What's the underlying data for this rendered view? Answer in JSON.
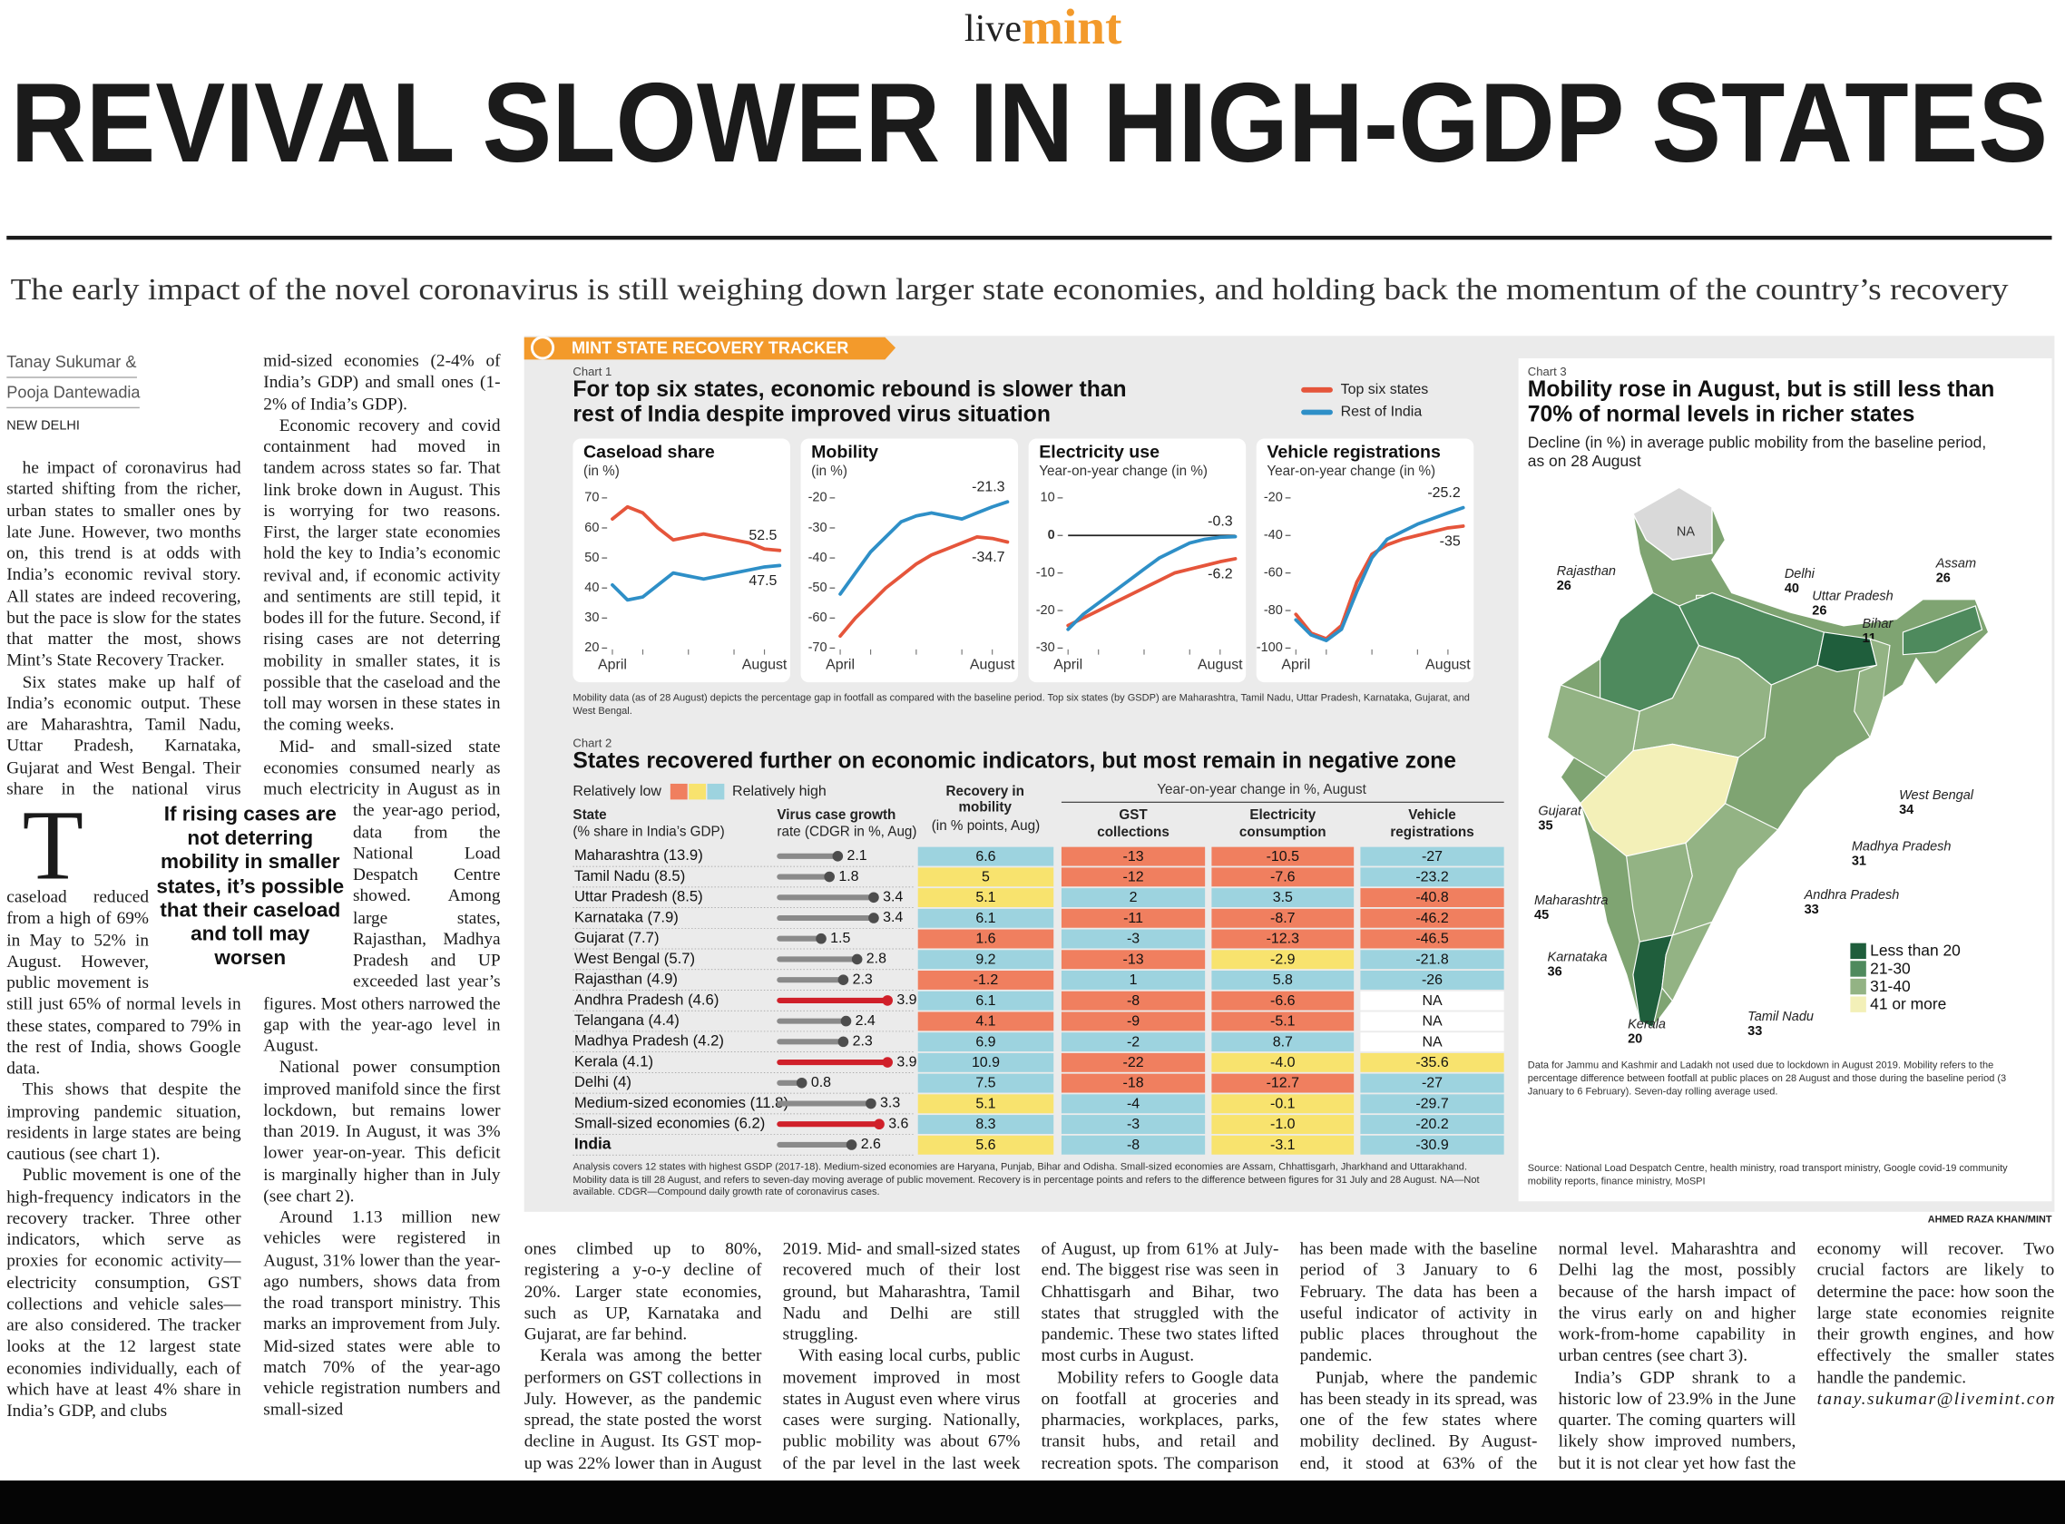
{
  "brand": {
    "live": "live",
    "mint": "mint"
  },
  "headline": "REVIVAL SLOWER IN HIGH-GDP STATES",
  "standfirst": "The early impact of the novel coronavirus is still weighing down larger state economies, and holding back the momentum of the country’s recovery",
  "byline": [
    "Tanay Sukumar &",
    "Pooja Dantewadia"
  ],
  "dateline": "NEW DELHI",
  "pullquote": "If rising cases are not deterring mobility in smaller states, it’s possible that their caseload and toll may worsen",
  "article": {
    "col1": [
      "The impact of coronavirus had started shifting from the richer, urban states to smaller ones by late June. However, two months on, this trend is at odds with India’s economic revival story. All states are indeed recovering, but the pace is slow for the states that matter the most, shows Mint’s State Recovery Tracker.",
      "Six states make up half of India’s economic output. These are Maharashtra, Tamil Nadu, Uttar Pradesh, Karnataka, Gujarat and West Bengal. Their share in the national virus caseload reduced from a high of 69% in May to 52% in August. However, public movement is still just 65% of normal levels in these states, compared to 79% in the rest of India, shows Google data.",
      "This shows that despite the improving pandemic situation, residents in large states are being cautious (see chart 1).",
      "Public movement is one of the high-frequency indicators in the recovery tracker. Three other indicators, which serve as proxies for economic activity—electricity consumption, GST collections and vehicle sales—are also considered. The tracker looks at the 12 largest state economies individually, each of which have at least 4% share in India’s GDP, and clubs"
    ],
    "col2": [
      "mid-sized economies (2-4% of India’s GDP) and small ones (1-2% of India’s GDP).",
      "Economic recovery and covid containment had moved in tandem across states so far. That link broke down in August. This is worrying for two reasons. First, the larger state economies hold the key to India’s economic revival and, if economic activity and sentiments are still tepid, it bodes ill for the future. Second, if rising cases are not deterring mobility in smaller states, it is possible that the caseload and the toll may worsen in these states in the coming weeks.",
      "Mid- and small-sized state economies consumed nearly as much electricity in August as in the year-ago period, data from the National Load Despatch Centre showed. Among large states, Rajasthan, Madhya Pradesh and UP exceeded last year’s figures. Most others narrowed the gap with the year-ago level in August.",
      "National power consumption improved manifold since the first lockdown, but remains lower than 2019. In August, it was 3% lower year-on-year. This deficit is marginally higher than in July (see chart 2).",
      "Around 1.13 million new vehicles were registered in August, 31% lower than the year-ago numbers, shows data from the road transport ministry. This marks an improvement from July. Mid-sized states were able to match 70% of the year-ago vehicle registration numbers and small-sized"
    ],
    "bottom": [
      "ones climbed up to 80%, registering a y-o-y decline of 20%. Larger state economies, such as UP, Karnataka and Gujarat, are far behind.",
      "Kerala was among the better performers on GST collections in July. However, as the pandemic spread, the state posted the worst decline in August. Its GST mop-up was 22% lower than in August 2019. Mid- and small-sized states recovered much of their lost ground, but Maharashtra, Tamil Nadu and Delhi are still struggling.",
      "With easing local curbs, public movement improved in most states in August even where virus cases were surging. Nationally, public mobility was about 67% of the par level in the last week of August, up from 61% at July-end. The biggest rise was seen in Chhattisgarh and Bihar, two states that struggled with the pandemic. These two states lifted most curbs in August.",
      "Mobility refers to Google data on footfall at groceries and pharmacies, workplaces, parks, transit hubs, and retail and recreation spots. The comparison has been made with the baseline period of 3 January to 6 February. The data has been a useful indicator of activity in public places throughout the pandemic.",
      "Punjab, where the pandemic has been steady in its spread, was one of the few states where mobility declined. By August-end, it stood at 63% of the normal level. Maharashtra and Delhi lag the most, possibly because of the harsh impact of the virus early on and higher work-from-home capability in urban centres (see chart 3).",
      "India’s GDP shrank to a historic low of 23.9% in the June quarter. The coming quarters will likely show improved numbers, but it is not clear yet how fast the economy will recover. Two crucial factors are likely to determine the pace: how soon the large state economies reignite their growth engines, and how effectively the smaller states handle the pandemic."
    ],
    "email": "tanay.sukumar@livemint.com"
  },
  "tracker_label": "MINT STATE RECOVERY TRACKER",
  "credit": "AHMED RAZA KHAN/MINT",
  "chart1": {
    "type": "line",
    "label": "Chart 1",
    "title": "For top six states, economic rebound is slower than rest of India despite improved virus situation",
    "series_names": [
      "Top six states",
      "Rest of India"
    ],
    "series_colors": [
      "#e5553b",
      "#2e8fc7"
    ],
    "categories": [
      "April",
      null,
      null,
      null,
      null,
      null,
      null,
      null,
      null,
      null,
      "August",
      null
    ],
    "panels": [
      {
        "title": "Caseload share",
        "subtitle": "(in %)",
        "ylim": [
          20,
          70
        ],
        "yticks": [
          20,
          30,
          40,
          50,
          60,
          70
        ],
        "series": [
          [
            63,
            67,
            65,
            60,
            56,
            57,
            58,
            57,
            56,
            55,
            53,
            52.5
          ],
          [
            41,
            36,
            37,
            41,
            45,
            44,
            43,
            44,
            45,
            46,
            47,
            47.5
          ]
        ]
      },
      {
        "title": "Mobility",
        "subtitle": "(in %)",
        "ylim": [
          -70,
          -20
        ],
        "yticks": [
          -70,
          -60,
          -50,
          -40,
          -30,
          -20
        ],
        "series": [
          [
            -66,
            -60,
            -55,
            -50,
            -46,
            -42,
            -39,
            -37,
            -35,
            -33,
            -33.5,
            -34.7
          ],
          [
            -52,
            -45,
            -38,
            -33,
            -28,
            -26,
            -25,
            -26,
            -27,
            -25,
            -23,
            -21.3
          ]
        ]
      },
      {
        "title": "Electricity use",
        "subtitle": "Year-on-year change (in %)",
        "ylim": [
          -30,
          10
        ],
        "yticks": [
          -30,
          -20,
          -10,
          0,
          10
        ],
        "series": [
          [
            -24,
            -22,
            -20,
            -18,
            -16,
            -14,
            -12,
            -10,
            -9,
            -8,
            -7,
            -6.2
          ],
          [
            -25,
            -21,
            -18,
            -15,
            -12,
            -9,
            -6,
            -4,
            -2,
            -1,
            -0.5,
            -0.3
          ]
        ]
      },
      {
        "title": "Vehicle registrations",
        "subtitle": "Year-on-year change (in %)",
        "ylim": [
          -100,
          -20
        ],
        "yticks": [
          -100,
          -80,
          -60,
          -40,
          -20
        ],
        "series": [
          [
            -82,
            -92,
            -95,
            -88,
            -65,
            -50,
            -45,
            -42,
            -40,
            -38,
            -36,
            -35
          ],
          [
            -85,
            -93,
            -96,
            -90,
            -70,
            -52,
            -42,
            -38,
            -34,
            -31,
            -28,
            -25.2
          ]
        ]
      }
    ],
    "note": "Mobility data (as of 28 August) depicts the percentage gap in footfall as compared with the baseline period. Top six states (by GSDP) are Maharashtra, Tamil Nadu, Uttar Pradesh, Karnataka, Gujarat, and West Bengal."
  },
  "chart2": {
    "type": "table",
    "label": "Chart 2",
    "title": "States recovered further on economic indicators, but most remain in negative zone",
    "legend_low": "Relatively low",
    "legend_high": "Relatively high",
    "scale_colors": [
      "#f07f5f",
      "#f8e36e",
      "#9dd3df"
    ],
    "group_header": "Year-on-year change in %, August",
    "headers": {
      "state": "State",
      "state_sub": "(% share in India’s GDP)",
      "rate": "Virus case growth",
      "rate_sub": "rate (CDGR in %, Aug)",
      "mobility": "Recovery in mobility",
      "mobility_sub": "(in % points, Aug)",
      "gst": "GST collections",
      "elec": "Electricity consumption",
      "veh": "Vehicle registrations"
    },
    "rows": [
      {
        "name": "Maharashtra (13.9)",
        "rate": 2.1,
        "rate_color": "#8a8a8a",
        "values": [
          6.6,
          -13,
          -10.5,
          -27
        ],
        "value_labels": [
          "6.6",
          "-13",
          "-10.5",
          "-27"
        ],
        "colors": [
          "#9dd3df",
          "#f07f5f",
          "#f07f5f",
          "#9dd3df"
        ]
      },
      {
        "name": "Tamil Nadu (8.5)",
        "rate": 1.8,
        "rate_color": "#8a8a8a",
        "values": [
          5,
          -12,
          -7.6,
          -23.2
        ],
        "value_labels": [
          "5",
          "-12",
          "-7.6",
          "-23.2"
        ],
        "colors": [
          "#f8e36e",
          "#f07f5f",
          "#f07f5f",
          "#9dd3df"
        ]
      },
      {
        "name": "Uttar Pradesh (8.5)",
        "rate": 3.4,
        "rate_color": "#8a8a8a",
        "values": [
          5.1,
          2,
          3.5,
          -40.8
        ],
        "value_labels": [
          "5.1",
          "2",
          "3.5",
          "-40.8"
        ],
        "colors": [
          "#f8e36e",
          "#9dd3df",
          "#9dd3df",
          "#f07f5f"
        ]
      },
      {
        "name": "Karnataka (7.9)",
        "rate": 3.4,
        "rate_color": "#8a8a8a",
        "values": [
          6.1,
          -11,
          -8.7,
          -46.2
        ],
        "value_labels": [
          "6.1",
          "-11",
          "-8.7",
          "-46.2"
        ],
        "colors": [
          "#9dd3df",
          "#f07f5f",
          "#f07f5f",
          "#f07f5f"
        ]
      },
      {
        "name": "Gujarat (7.7)",
        "rate": 1.5,
        "rate_color": "#8a8a8a",
        "values": [
          1.6,
          -3,
          -12.3,
          -46.5
        ],
        "value_labels": [
          "1.6",
          "-3",
          "-12.3",
          "-46.5"
        ],
        "colors": [
          "#f07f5f",
          "#9dd3df",
          "#f07f5f",
          "#f07f5f"
        ]
      },
      {
        "name": "West Bengal (5.7)",
        "rate": 2.8,
        "rate_color": "#8a8a8a",
        "values": [
          9.2,
          -13,
          -2.9,
          -21.8
        ],
        "value_labels": [
          "9.2",
          "-13",
          "-2.9",
          "-21.8"
        ],
        "colors": [
          "#9dd3df",
          "#f07f5f",
          "#f8e36e",
          "#9dd3df"
        ]
      },
      {
        "name": "Rajasthan (4.9)",
        "rate": 2.3,
        "rate_color": "#8a8a8a",
        "values": [
          -1.2,
          1,
          5.8,
          -26
        ],
        "value_labels": [
          "-1.2",
          "1",
          "5.8",
          "-26"
        ],
        "colors": [
          "#f07f5f",
          "#9dd3df",
          "#9dd3df",
          "#9dd3df"
        ]
      },
      {
        "name": "Andhra Pradesh (4.6)",
        "rate": 3.9,
        "rate_color": "#d0202a",
        "values": [
          6.1,
          -8,
          -6.6,
          null
        ],
        "value_labels": [
          "6.1",
          "-8",
          "-6.6",
          "NA"
        ],
        "colors": [
          "#9dd3df",
          "#f07f5f",
          "#f07f5f",
          "#ffffff"
        ]
      },
      {
        "name": "Telangana (4.4)",
        "rate": 2.4,
        "rate_color": "#8a8a8a",
        "values": [
          4.1,
          -9,
          -5.1,
          null
        ],
        "value_labels": [
          "4.1",
          "-9",
          "-5.1",
          "NA"
        ],
        "colors": [
          "#f07f5f",
          "#f07f5f",
          "#f07f5f",
          "#ffffff"
        ]
      },
      {
        "name": "Madhya Pradesh (4.2)",
        "rate": 2.3,
        "rate_color": "#8a8a8a",
        "values": [
          6.9,
          -2,
          8.7,
          null
        ],
        "value_labels": [
          "6.9",
          "-2",
          "8.7",
          "NA"
        ],
        "colors": [
          "#9dd3df",
          "#9dd3df",
          "#9dd3df",
          "#ffffff"
        ]
      },
      {
        "name": "Kerala (4.1)",
        "rate": 3.9,
        "rate_color": "#d0202a",
        "values": [
          10.9,
          -22,
          -4,
          -35.6
        ],
        "value_labels": [
          "10.9",
          "-22",
          "-4.0",
          "-35.6"
        ],
        "colors": [
          "#9dd3df",
          "#f07f5f",
          "#f8e36e",
          "#f8e36e"
        ]
      },
      {
        "name": "Delhi (4)",
        "rate": 0.8,
        "rate_color": "#8a8a8a",
        "values": [
          7.5,
          -18,
          -12.7,
          -27
        ],
        "value_labels": [
          "7.5",
          "-18",
          "-12.7",
          "-27"
        ],
        "colors": [
          "#9dd3df",
          "#f07f5f",
          "#f07f5f",
          "#9dd3df"
        ]
      },
      {
        "name": "Medium-sized economies (11.8)",
        "rate": 3.3,
        "rate_color": "#8a8a8a",
        "values": [
          5.1,
          -4,
          -0.1,
          -29.7
        ],
        "value_labels": [
          "5.1",
          "-4",
          "-0.1",
          "-29.7"
        ],
        "colors": [
          "#f8e36e",
          "#9dd3df",
          "#f8e36e",
          "#9dd3df"
        ]
      },
      {
        "name": "Small-sized economies (6.2)",
        "rate": 3.6,
        "rate_color": "#d0202a",
        "values": [
          8.3,
          -3,
          -1,
          -20.2
        ],
        "value_labels": [
          "8.3",
          "-3",
          "-1.0",
          "-20.2"
        ],
        "colors": [
          "#9dd3df",
          "#9dd3df",
          "#f8e36e",
          "#9dd3df"
        ]
      },
      {
        "name": "India",
        "rate": 2.6,
        "rate_color": "#8a8a8a",
        "values": [
          5.6,
          -8,
          -3.1,
          -30.9
        ],
        "value_labels": [
          "5.6",
          "-8",
          "-3.1",
          "-30.9"
        ],
        "colors": [
          "#f8e36e",
          "#9dd3df",
          "#f8e36e",
          "#9dd3df"
        ]
      }
    ],
    "note": "Analysis covers 12 states with highest GSDP (2017-18). Medium-sized economies are Haryana, Punjab, Bihar and Odisha. Small-sized economies are Assam, Chhattisgarh, Jharkhand and Uttarakhand. Mobility data is till 28 August, and refers to seven-day moving average of public movement. Recovery is in percentage points and refers to the difference between figures for 31 July and 28 August. NA—Not available. CDGR—Compound daily growth rate of coronavirus cases."
  },
  "chart3": {
    "type": "map",
    "label": "Chart 3",
    "title": "Mobility rose in August, but is still less than 70% of normal levels in richer states",
    "subtitle": "Decline (in %) in average public mobility from the baseline period, as on 28 August",
    "na_label": "NA",
    "legend": [
      {
        "label": "Less than 20",
        "color": "#1f5e3c"
      },
      {
        "label": "21-30",
        "color": "#4e8a5d"
      },
      {
        "label": "31-40",
        "color": "#93b384"
      },
      {
        "label": "41 or more",
        "color": "#f3f0b8"
      }
    ],
    "states": [
      {
        "name": "Rajasthan",
        "value": 26,
        "color": "#4e8a5d"
      },
      {
        "name": "Delhi",
        "value": 40,
        "color": "#93b384"
      },
      {
        "name": "Uttar Pradesh",
        "value": 26,
        "color": "#4e8a5d"
      },
      {
        "name": "Bihar",
        "value": 11,
        "color": "#1f5e3c"
      },
      {
        "name": "Assam",
        "value": 26,
        "color": "#4e8a5d"
      },
      {
        "name": "West Bengal",
        "value": 34,
        "color": "#93b384"
      },
      {
        "name": "Madhya Pradesh",
        "value": 31,
        "color": "#93b384"
      },
      {
        "name": "Gujarat",
        "value": 35,
        "color": "#93b384"
      },
      {
        "name": "Maharashtra",
        "value": 45,
        "color": "#f3f0b8"
      },
      {
        "name": "Andhra Pradesh",
        "value": 33,
        "color": "#93b384"
      },
      {
        "name": "Karnataka",
        "value": 36,
        "color": "#93b384"
      },
      {
        "name": "Kerala",
        "value": 20,
        "color": "#1f5e3c"
      },
      {
        "name": "Tamil Nadu",
        "value": 33,
        "color": "#93b384"
      }
    ],
    "note": "Data for Jammu and Kashmir and Ladakh not used due to lockdown in August 2019. Mobility refers to the percentage difference between footfall at public places on 28 August and those during the baseline period (3 January to 6 February). Seven-day rolling average used.",
    "source": "Source: National Load Despatch Centre, health ministry, road transport ministry, Google covid-19 community mobility reports, finance ministry, MoSPI"
  }
}
